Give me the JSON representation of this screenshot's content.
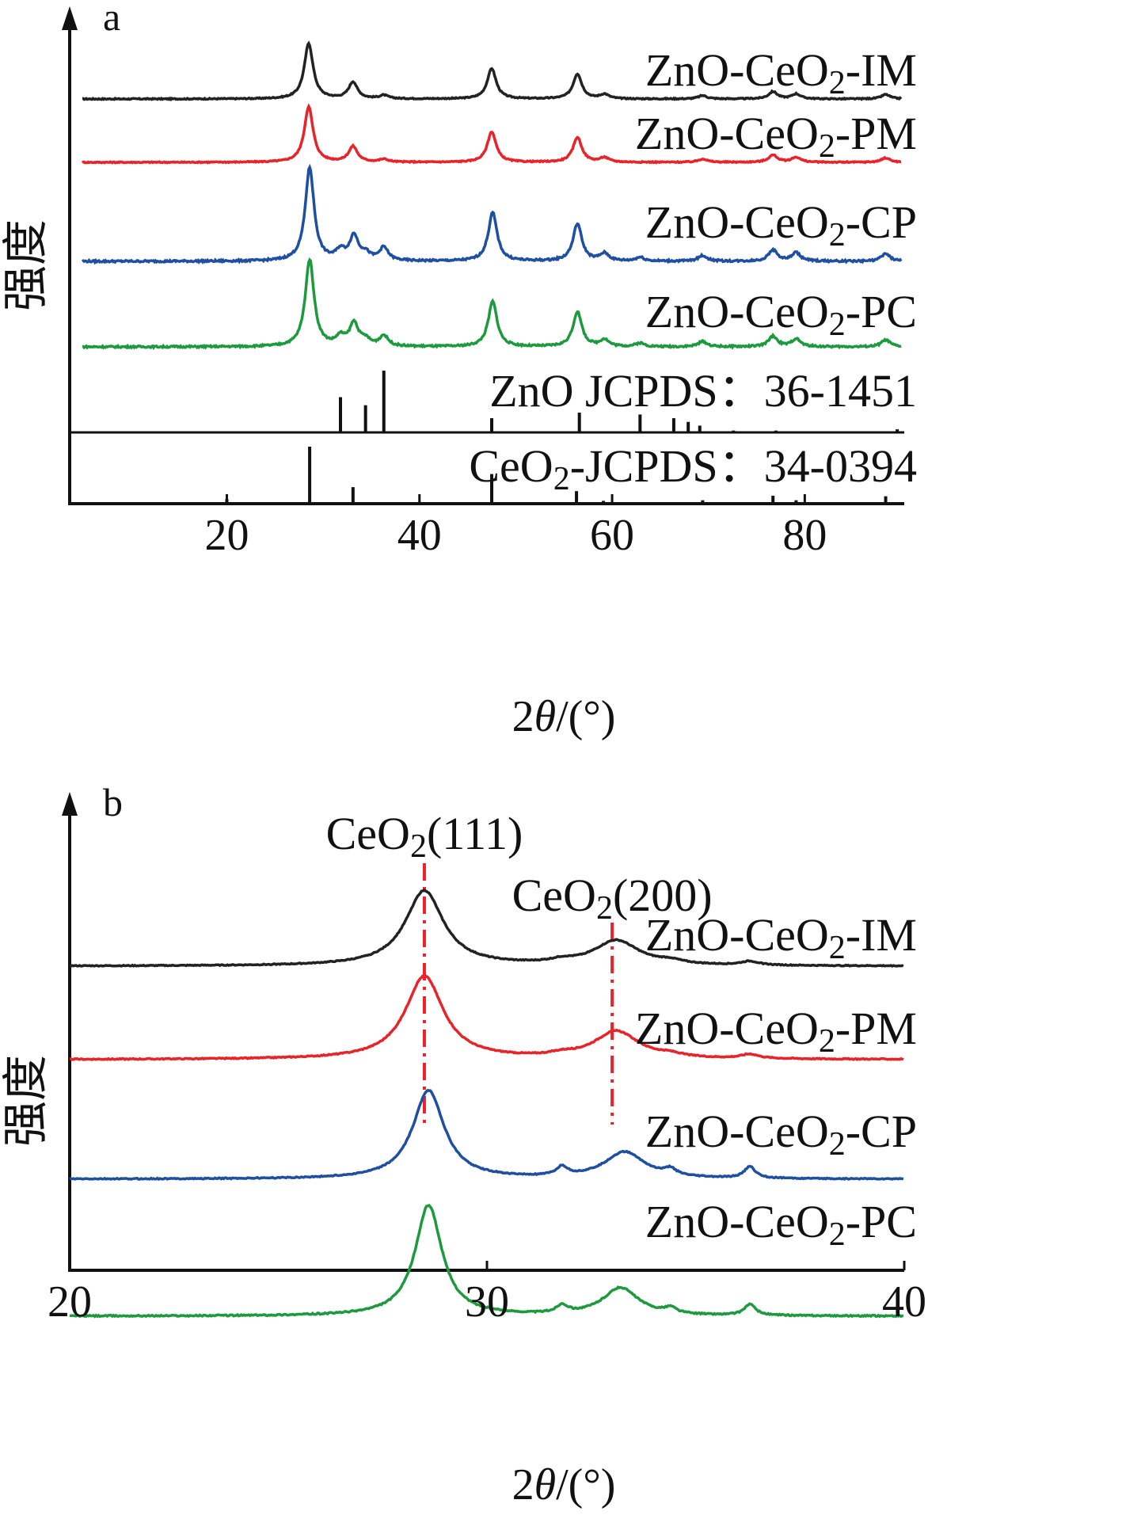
{
  "chart_data": [
    {
      "panel": "a",
      "type": "line",
      "xlabel": "2θ/(°)",
      "ylabel": "强度",
      "xlim": [
        5,
        90
      ],
      "xticks": [
        20,
        40,
        60,
        80
      ],
      "series": [
        {
          "name": "ZnO-CeO2-IM",
          "label_main": "ZnO-CeO",
          "label_sub": "2",
          "label_tail": "-IM",
          "color": "#222222",
          "peaks": [
            [
              28.5,
              1.0
            ],
            [
              33.1,
              0.3
            ],
            [
              47.5,
              0.55
            ],
            [
              56.4,
              0.45
            ],
            [
              59.2,
              0.08
            ],
            [
              69.4,
              0.06
            ],
            [
              76.7,
              0.13
            ],
            [
              79.1,
              0.09
            ],
            [
              88.4,
              0.08
            ],
            [
              36.3,
              0.06
            ]
          ]
        },
        {
          "name": "ZnO-CeO2-PM",
          "label_main": "ZnO-CeO",
          "label_sub": "2",
          "label_tail": "-PM",
          "color": "#e8232a",
          "peaks": [
            [
              28.5,
              1.0
            ],
            [
              33.1,
              0.28
            ],
            [
              47.5,
              0.55
            ],
            [
              56.4,
              0.45
            ],
            [
              59.2,
              0.08
            ],
            [
              69.4,
              0.06
            ],
            [
              76.7,
              0.13
            ],
            [
              79.1,
              0.09
            ],
            [
              88.4,
              0.08
            ],
            [
              36.3,
              0.05
            ]
          ]
        },
        {
          "name": "ZnO-CeO2-CP",
          "label_main": "ZnO-CeO",
          "label_sub": "2",
          "label_tail": "-CP",
          "color": "#1f4fa0",
          "peaks": [
            [
              28.6,
              1.0
            ],
            [
              31.8,
              0.1
            ],
            [
              33.2,
              0.26
            ],
            [
              34.4,
              0.07
            ],
            [
              36.3,
              0.14
            ],
            [
              47.6,
              0.52
            ],
            [
              56.4,
              0.4
            ],
            [
              59.2,
              0.08
            ],
            [
              62.9,
              0.04
            ],
            [
              69.4,
              0.06
            ],
            [
              76.7,
              0.12
            ],
            [
              79.1,
              0.09
            ],
            [
              88.4,
              0.08
            ]
          ]
        },
        {
          "name": "ZnO-CeO2-PC",
          "label_main": "ZnO-CeO",
          "label_sub": "2",
          "label_tail": "-PC",
          "color": "#1e9a3e",
          "peaks": [
            [
              28.6,
              1.0
            ],
            [
              31.8,
              0.1
            ],
            [
              33.2,
              0.26
            ],
            [
              34.4,
              0.07
            ],
            [
              36.3,
              0.12
            ],
            [
              47.6,
              0.52
            ],
            [
              56.4,
              0.4
            ],
            [
              59.2,
              0.08
            ],
            [
              62.9,
              0.04
            ],
            [
              69.4,
              0.06
            ],
            [
              76.7,
              0.12
            ],
            [
              79.1,
              0.09
            ],
            [
              88.4,
              0.08
            ]
          ]
        }
      ],
      "references": [
        {
          "name": "ZnO JCPDS：36-1451",
          "label_main": "ZnO JCPDS：36-1451",
          "sticks": [
            [
              31.8,
              0.57
            ],
            [
              34.4,
              0.44
            ],
            [
              36.3,
              1.0
            ],
            [
              47.5,
              0.23
            ],
            [
              56.6,
              0.32
            ],
            [
              62.9,
              0.29
            ],
            [
              66.4,
              0.23
            ],
            [
              67.9,
              0.17
            ],
            [
              69.1,
              0.11
            ],
            [
              72.6,
              0.03
            ],
            [
              77.0,
              0.03
            ],
            [
              89.6,
              0.05
            ]
          ]
        },
        {
          "name": "CeO2-JCPDS：34-0394",
          "label_main": "CeO",
          "label_sub": "2",
          "label_tail": "-JCPDS：34-0394",
          "sticks": [
            [
              28.6,
              1.0
            ],
            [
              33.1,
              0.29
            ],
            [
              47.5,
              0.52
            ],
            [
              56.3,
              0.22
            ],
            [
              59.1,
              0.05
            ],
            [
              69.4,
              0.06
            ],
            [
              76.7,
              0.14
            ],
            [
              79.1,
              0.06
            ],
            [
              88.4,
              0.13
            ],
            [
              20.0,
              0.08
            ],
            [
              16.5,
              0.02
            ],
            [
              23.5,
              0.02
            ],
            [
              38.5,
              0.02
            ],
            [
              40.0,
              0.03
            ],
            [
              44.5,
              0.02
            ]
          ]
        }
      ]
    },
    {
      "panel": "b",
      "type": "line",
      "xlabel": "2θ/(°)",
      "ylabel": "强度",
      "xlim": [
        20,
        40
      ],
      "xticks": [
        20,
        30,
        40
      ],
      "annotations": [
        {
          "main": "CeO",
          "sub": "2",
          "tail": "(111)",
          "x": 28.5
        },
        {
          "main": "CeO",
          "sub": "2",
          "tail": "(200)",
          "x": 33.0
        }
      ],
      "series": [
        {
          "name": "ZnO-CeO2-IM",
          "label_main": "ZnO-CeO",
          "label_sub": "2",
          "label_tail": "-IM",
          "color": "#222222",
          "peaks": [
            [
              28.5,
              1.0,
              0.85
            ],
            [
              33.1,
              0.33,
              1.0
            ],
            [
              31.8,
              0.04,
              0.5
            ],
            [
              34.4,
              0.04,
              0.5
            ],
            [
              36.3,
              0.05,
              0.4
            ]
          ]
        },
        {
          "name": "ZnO-CeO2-PM",
          "label_main": "ZnO-CeO",
          "label_sub": "2",
          "label_tail": "-PM",
          "color": "#e8232a",
          "peaks": [
            [
              28.5,
              1.0,
              0.85
            ],
            [
              33.1,
              0.33,
              1.0
            ],
            [
              31.8,
              0.03,
              0.5
            ],
            [
              34.4,
              0.03,
              0.5
            ],
            [
              36.3,
              0.05,
              0.4
            ]
          ]
        },
        {
          "name": "ZnO-CeO2-CP",
          "label_main": "ZnO-CeO",
          "label_sub": "2",
          "label_tail": "-CP",
          "color": "#1f4fa0",
          "peaks": [
            [
              28.6,
              1.0,
              0.7
            ],
            [
              33.3,
              0.3,
              0.9
            ],
            [
              31.8,
              0.1,
              0.25
            ],
            [
              34.4,
              0.07,
              0.25
            ],
            [
              36.3,
              0.13,
              0.25
            ]
          ]
        },
        {
          "name": "ZnO-CeO2-PC",
          "label_main": "ZnO-CeO",
          "label_sub": "2",
          "label_tail": "-PC",
          "color": "#1e9a3e",
          "peaks": [
            [
              28.6,
              1.0,
              0.6
            ],
            [
              33.2,
              0.25,
              0.8
            ],
            [
              31.8,
              0.07,
              0.25
            ],
            [
              34.4,
              0.05,
              0.25
            ],
            [
              36.3,
              0.1,
              0.25
            ]
          ]
        }
      ]
    }
  ],
  "panels": {
    "a": {
      "letter": "a",
      "xtitle_pre": "2",
      "xtitle_theta": "θ",
      "xtitle_post": "/(°)",
      "ytitle": "强度"
    },
    "b": {
      "letter": "b",
      "xtitle_pre": "2",
      "xtitle_theta": "θ",
      "xtitle_post": "/(°)",
      "ytitle": "强度"
    }
  },
  "colors": {
    "reference_line": "#e8232a",
    "axis": "#111111"
  }
}
